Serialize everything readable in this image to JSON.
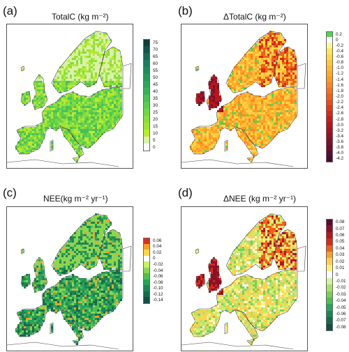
{
  "panels": [
    {
      "id": "a",
      "label": "(a)",
      "title": "TotalC (kg m⁻²)",
      "palette": "totalc",
      "colorbar": {
        "ticks": [
          "75",
          "70",
          "65",
          "60",
          "55",
          "50",
          "45",
          "40",
          "35",
          "30",
          "25",
          "20",
          "15",
          "10",
          "5",
          "0"
        ],
        "colors": [
          "#0f3d3a",
          "#14524a",
          "#186957",
          "#1c7d5c",
          "#218a5a",
          "#26985a",
          "#2ca55a",
          "#38b25a",
          "#4abf5a",
          "#5ccc4f",
          "#70d645",
          "#86de3c",
          "#9de337",
          "#b9ea33",
          "#d9f1a8",
          "#ffffff"
        ]
      }
    },
    {
      "id": "b",
      "label": "(b)",
      "title": "ΔTotalC (kg m⁻²)",
      "palette": "dtotalc",
      "colorbar": {
        "ticks": [
          "0.2",
          "0",
          "-0.2",
          "-0.4",
          "-0.6",
          "-0.8",
          "-1.0",
          "-1.2",
          "-1.4",
          "-1.6",
          "-1.8",
          "-2.0",
          "-2.2",
          "-2.4",
          "-2.6",
          "-2.8",
          "-3.0",
          "-3.2",
          "-3.4",
          "-3.6",
          "-3.8",
          "-4.0",
          "-4.2"
        ],
        "colors": [
          "#55d455",
          "#ffffff",
          "#fff6a0",
          "#ffe760",
          "#ffd84a",
          "#ffc83c",
          "#ffb832",
          "#ffa82a",
          "#ff9824",
          "#fc861f",
          "#f5741c",
          "#ef611a",
          "#e84c18",
          "#e03a17",
          "#d62a17",
          "#c91d19",
          "#b8161d",
          "#a51322",
          "#921127",
          "#7e102b",
          "#6c0e2e",
          "#5a0c30",
          "#4a0a30"
        ]
      }
    },
    {
      "id": "c",
      "label": "(c)",
      "title": "NEE(kg m⁻² yr⁻¹)",
      "palette": "nee",
      "colorbar": {
        "ticks": [
          "0.06",
          "0.04",
          "0.02",
          "0",
          "-0.02",
          "-0.04",
          "-0.06",
          "-0.08",
          "-0.10",
          "-0.12",
          "-0.14"
        ],
        "colors": [
          "#d7301f",
          "#f4a02a",
          "#f7d94a",
          "#ffffff",
          "#c8ee6a",
          "#8ed452",
          "#4fbe52",
          "#2aa259",
          "#1d8655",
          "#176a4e",
          "#124f44"
        ]
      }
    },
    {
      "id": "d",
      "label": "(d)",
      "title": "ΔNEE (kg m⁻² yr⁻¹)",
      "palette": "dnee",
      "colorbar": {
        "ticks": [
          "0.08",
          "0.07",
          "0.06",
          "0.05",
          "0.04",
          "0.03",
          "0.02",
          "0.01",
          "0",
          "-0.01",
          "-0.02",
          "-0.03",
          "-0.04",
          "-0.05",
          "-0.06",
          "-0.07",
          "-0.08"
        ],
        "colors": [
          "#5a0c30",
          "#8a1128",
          "#b5161f",
          "#d62a17",
          "#ef611a",
          "#ffa02a",
          "#ffd050",
          "#fff080",
          "#ffffff",
          "#d6f1a0",
          "#a8e070",
          "#7acd5a",
          "#4fbe52",
          "#2aa259",
          "#1d8655",
          "#176a4e",
          "#124f44"
        ]
      }
    }
  ]
}
